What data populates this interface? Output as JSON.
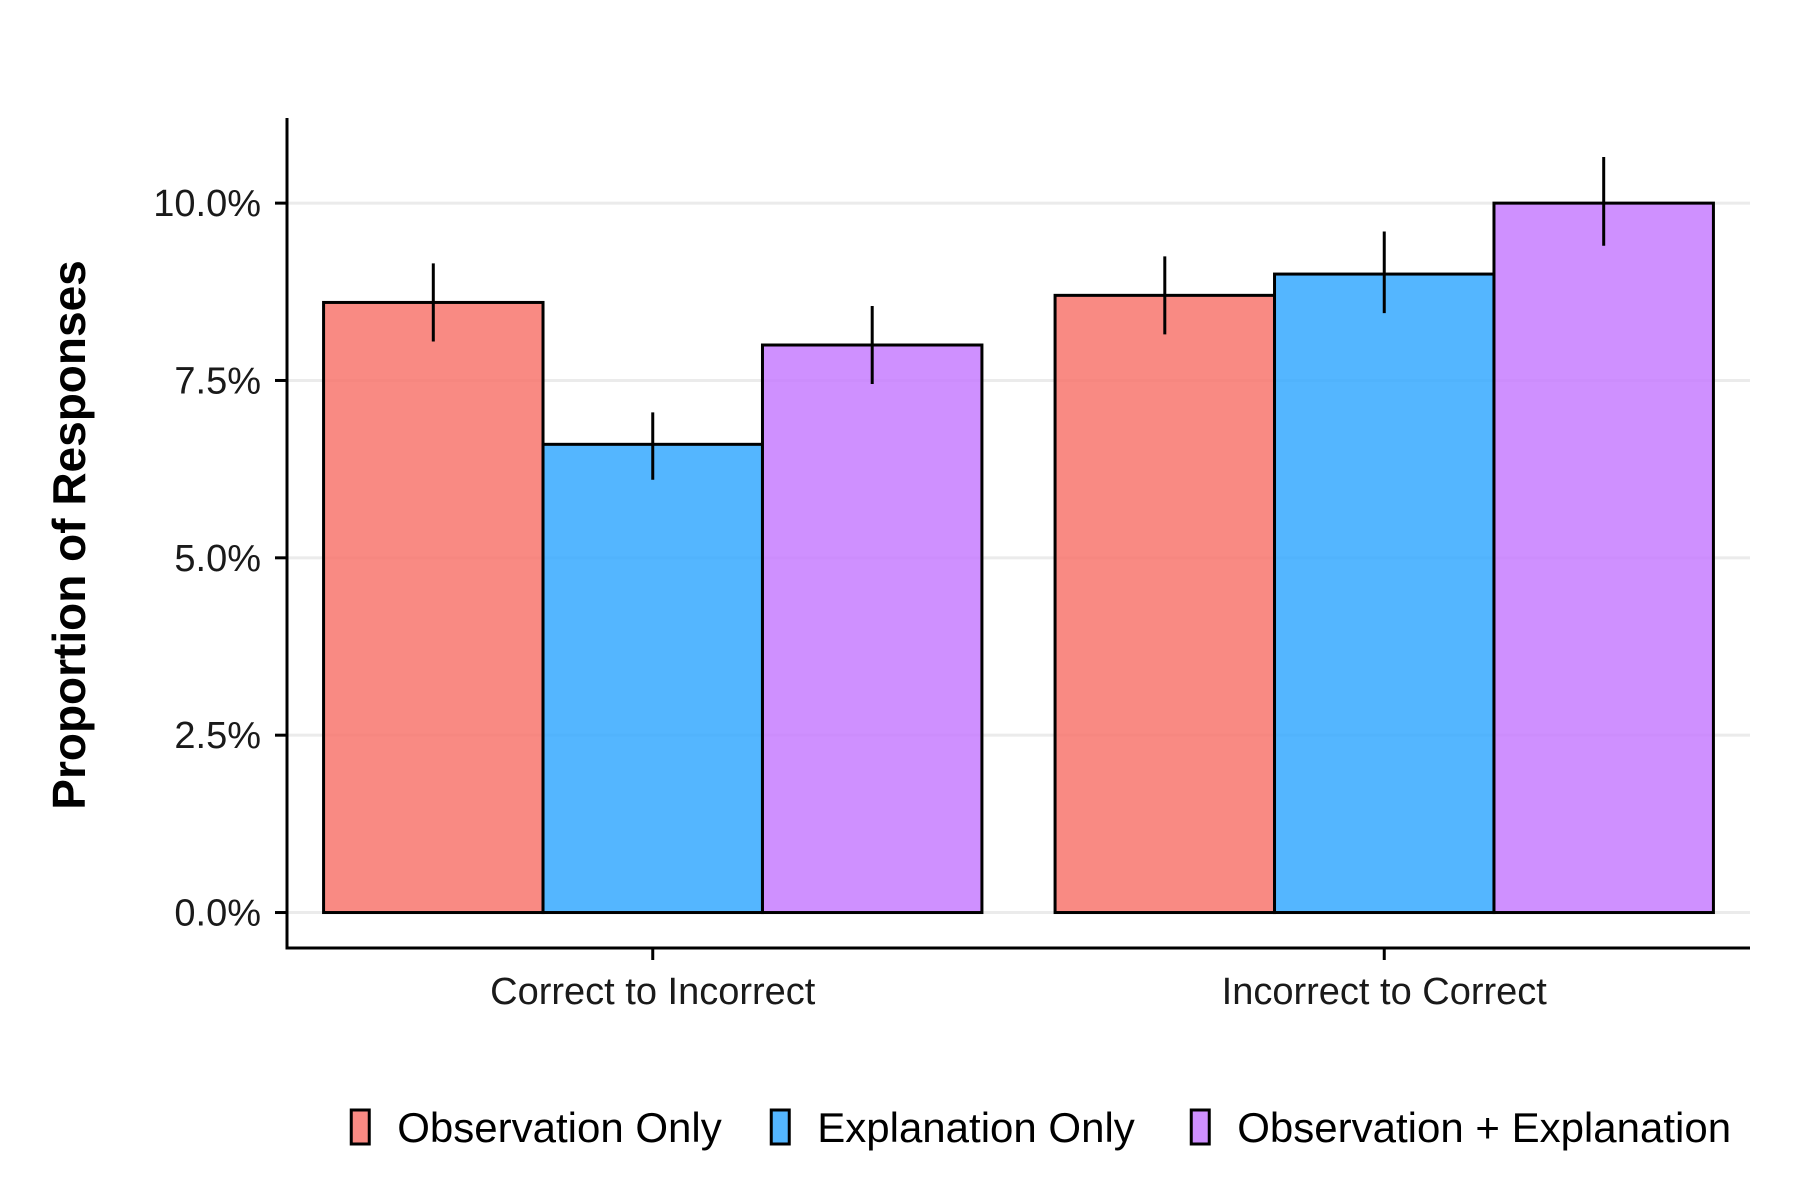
{
  "chart_data": {
    "type": "bar",
    "title": "",
    "xlabel": "",
    "ylabel": "Proportion of Responses",
    "categories": [
      "Correct to Incorrect",
      "Incorrect to Correct"
    ],
    "series": [
      {
        "name": "Observation Only",
        "color": "#F8766D",
        "values": [
          8.6,
          8.7
        ],
        "error": [
          [
            8.05,
            9.15
          ],
          [
            8.15,
            9.25
          ]
        ]
      },
      {
        "name": "Explanation Only",
        "color": "#36A9FF",
        "values": [
          6.6,
          9.0
        ],
        "error": [
          [
            6.1,
            7.05
          ],
          [
            8.45,
            9.6
          ]
        ]
      },
      {
        "name": "Observation + Explanation",
        "color": "#C77CFF",
        "values": [
          8.0,
          10.0
        ],
        "error": [
          [
            7.45,
            8.55
          ],
          [
            9.4,
            10.65
          ]
        ]
      }
    ],
    "ylim": [
      -0.5,
      11.2
    ],
    "yticks": [
      0,
      2.5,
      5,
      7.5,
      10
    ],
    "ytick_labels": [
      "0.0%",
      "2.5%",
      "5.0%",
      "7.5%",
      "10.0%"
    ],
    "grid": "horizontal major lines",
    "legend_position": "bottom"
  }
}
